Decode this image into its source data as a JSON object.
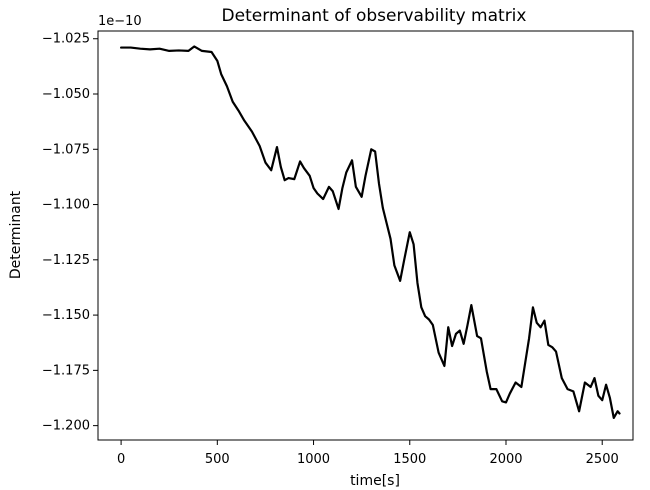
{
  "chart_data": {
    "type": "line",
    "title": "Determinant of observability matrix",
    "xlabel": "time[s]",
    "ylabel": "Determinant",
    "offset_label": "1e−10",
    "xlim": [
      -120,
      2660
    ],
    "ylim": [
      -1.2065,
      -1.0215
    ],
    "x_ticks": [
      0,
      500,
      1000,
      1500,
      2000,
      2500
    ],
    "x_tick_labels": [
      "0",
      "500",
      "1000",
      "1500",
      "2000",
      "2500"
    ],
    "y_ticks": [
      -1.2,
      -1.175,
      -1.15,
      -1.125,
      -1.1,
      -1.075,
      -1.05,
      -1.025
    ],
    "y_tick_labels": [
      "−1.200",
      "−1.175",
      "−1.150",
      "−1.125",
      "−1.100",
      "−1.075",
      "−1.050",
      "−1.025"
    ],
    "grid": false,
    "series": [
      {
        "color": "#000000",
        "x": [
          0,
          50,
          100,
          150,
          200,
          250,
          300,
          350,
          380,
          420,
          470,
          500,
          520,
          550,
          580,
          610,
          640,
          680,
          720,
          750,
          780,
          810,
          830,
          850,
          870,
          900,
          930,
          950,
          980,
          1000,
          1020,
          1050,
          1080,
          1100,
          1130,
          1150,
          1170,
          1200,
          1220,
          1250,
          1270,
          1300,
          1320,
          1340,
          1360,
          1380,
          1400,
          1420,
          1450,
          1470,
          1500,
          1520,
          1540,
          1560,
          1580,
          1600,
          1620,
          1650,
          1680,
          1700,
          1720,
          1740,
          1760,
          1780,
          1800,
          1820,
          1850,
          1870,
          1900,
          1920,
          1950,
          1980,
          2000,
          2020,
          2050,
          2080,
          2100,
          2120,
          2140,
          2160,
          2180,
          2200,
          2220,
          2240,
          2260,
          2290,
          2320,
          2350,
          2380,
          2410,
          2440,
          2460,
          2480,
          2500,
          2520,
          2540,
          2560,
          2580,
          2590
        ],
        "y": [
          -1.029,
          -1.029,
          -1.0295,
          -1.0298,
          -1.0295,
          -1.0305,
          -1.0303,
          -1.0305,
          -1.0285,
          -1.0305,
          -1.031,
          -1.035,
          -1.041,
          -1.0465,
          -1.0535,
          -1.0575,
          -1.062,
          -1.067,
          -1.0735,
          -1.081,
          -1.0845,
          -1.074,
          -1.083,
          -1.089,
          -1.088,
          -1.0885,
          -1.0805,
          -1.0835,
          -1.087,
          -1.0925,
          -1.095,
          -1.0975,
          -1.092,
          -1.094,
          -1.102,
          -1.0925,
          -1.0855,
          -1.08,
          -1.092,
          -1.0965,
          -1.087,
          -1.075,
          -1.076,
          -1.0905,
          -1.1015,
          -1.1085,
          -1.1155,
          -1.1275,
          -1.1345,
          -1.1255,
          -1.1125,
          -1.118,
          -1.1355,
          -1.1465,
          -1.1505,
          -1.152,
          -1.1545,
          -1.167,
          -1.173,
          -1.1555,
          -1.164,
          -1.1585,
          -1.157,
          -1.163,
          -1.1545,
          -1.1455,
          -1.1595,
          -1.1605,
          -1.1755,
          -1.1835,
          -1.1835,
          -1.189,
          -1.1895,
          -1.1855,
          -1.1805,
          -1.1825,
          -1.1715,
          -1.1605,
          -1.1465,
          -1.1535,
          -1.1555,
          -1.1525,
          -1.1635,
          -1.1645,
          -1.1665,
          -1.1785,
          -1.1835,
          -1.1845,
          -1.1935,
          -1.1805,
          -1.1825,
          -1.1785,
          -1.1865,
          -1.1885,
          -1.1815,
          -1.1875,
          -1.1965,
          -1.1935,
          -1.1945
        ]
      }
    ]
  }
}
